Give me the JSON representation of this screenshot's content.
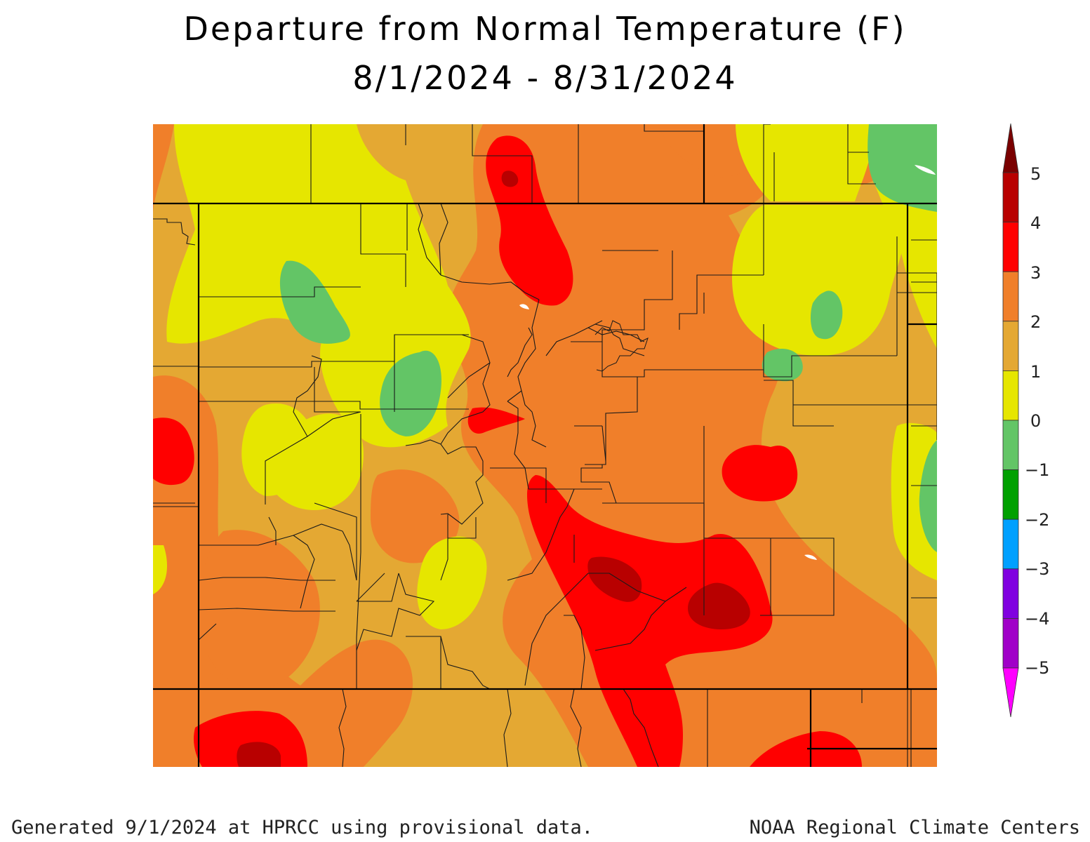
{
  "title": "Departure from Normal Temperature (F)",
  "subtitle": "8/1/2024 - 8/31/2024",
  "legend": {
    "labels": [
      "5",
      "4",
      "3",
      "2",
      "1",
      "0",
      "−1",
      "−2",
      "−3",
      "−4",
      "−5"
    ],
    "bins": [
      {
        "from": 4,
        "to": 5,
        "color": "#b80000"
      },
      {
        "from": 3,
        "to": 4,
        "color": "#ff0000"
      },
      {
        "from": 2,
        "to": 3,
        "color": "#f07f2a"
      },
      {
        "from": 1,
        "to": 2,
        "color": "#e4a833"
      },
      {
        "from": 0,
        "to": 1,
        "color": "#e6e600"
      },
      {
        "from": -1,
        "to": 0,
        "color": "#63c566"
      },
      {
        "from": -2,
        "to": -1,
        "color": "#00a000"
      },
      {
        "from": -3,
        "to": -2,
        "color": "#00a0ff"
      },
      {
        "from": -4,
        "to": -3,
        "color": "#8000e0"
      },
      {
        "from": -5,
        "to": -4,
        "color": "#a000c8"
      }
    ],
    "top_arrow_color": "#7a0000",
    "bottom_arrow_color": "#ff00ff"
  },
  "footer": {
    "left": "Generated 9/1/2024 at HPRCC using provisional data.",
    "right": "NOAA Regional Climate Centers"
  }
}
